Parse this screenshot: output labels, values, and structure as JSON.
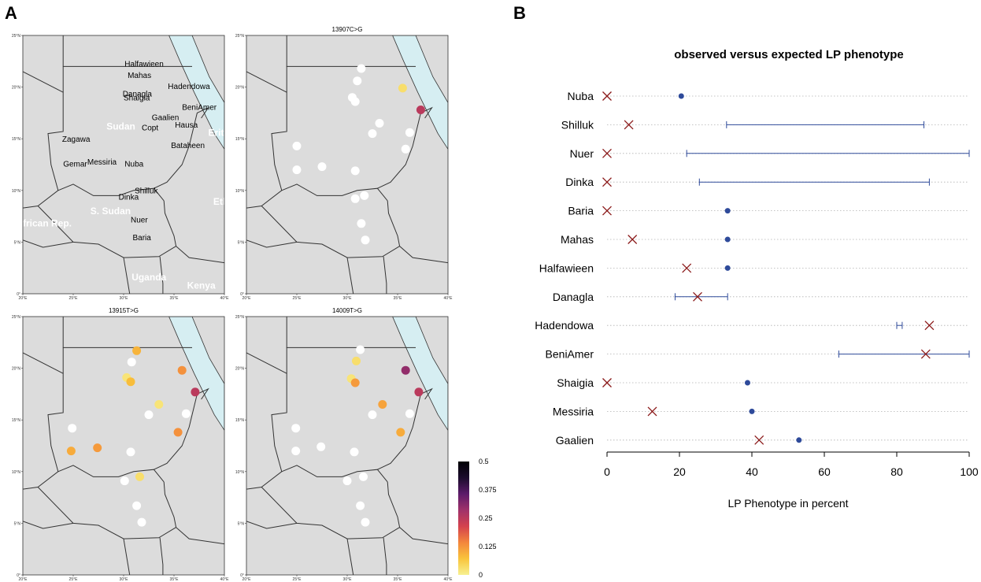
{
  "figure": {
    "panel_a_letter": "A",
    "panel_b_letter": "B"
  },
  "maps": {
    "lat_ticks": [
      "0°",
      "5°N",
      "10°N",
      "15°N",
      "20°N",
      "25°N"
    ],
    "lon_ticks": [
      "20°E",
      "25°E",
      "30°E",
      "35°E",
      "40°E"
    ],
    "panels": [
      {
        "title": ""
      },
      {
        "title": "13907C>G"
      },
      {
        "title": "13915T>G"
      },
      {
        "title": "14009T>G"
      }
    ],
    "country_labels": [
      "Sudan",
      "S. Sudan",
      "frican Rep.",
      "Uganda",
      "Kenya",
      "Ethic",
      "Eritre"
    ],
    "population_labels": [
      "Halfawieen",
      "Mahas",
      "Hadendowa",
      "Danagla",
      "Shaigia",
      "BeniAmer",
      "Gaalien",
      "Copt",
      "Hausa",
      "Zagawa",
      "Bataheen",
      "Gemar",
      "Messiria",
      "Nuba",
      "Shilluk",
      "Dinka",
      "Nuer",
      "Baria"
    ],
    "colorbar": {
      "ticks": [
        "0.5",
        "0.375",
        "0.25",
        "0.125",
        "0"
      ],
      "min": 0,
      "max": 0.5,
      "colors": [
        "#f7f190",
        "#f9c43b",
        "#f3863c",
        "#d4424e",
        "#a0326a",
        "#5c1b6a",
        "#1b0c2c",
        "#000004"
      ]
    }
  },
  "chart_data": {
    "type": "scatter",
    "title": "observed versus expected LP phenotype",
    "xlabel": "LP Phenotype in percent",
    "xlim": [
      0,
      100
    ],
    "x_ticks": [
      "0",
      "20",
      "40",
      "60",
      "80",
      "100"
    ],
    "categories": [
      "Nuba",
      "Shilluk",
      "Nuer",
      "Dinka",
      "Baria",
      "Mahas",
      "Halfawieen",
      "Danagla",
      "Hadendowa",
      "BeniAmer",
      "Shaigia",
      "Messiria",
      "Gaalien"
    ],
    "series": [
      {
        "marker": "x",
        "color": "#8b1a1a",
        "values": [
          0,
          6,
          0,
          0,
          0,
          7,
          22,
          25,
          89,
          88,
          0,
          12.5,
          42
        ]
      },
      {
        "marker": "dot",
        "color": "#2e4a9a",
        "values": [
          20.5,
          null,
          null,
          null,
          33.3,
          33.3,
          33.3,
          null,
          null,
          null,
          38.8,
          40,
          53
        ]
      },
      {
        "marker": "range",
        "color": "#2e4a9a",
        "ranges": [
          null,
          [
            33,
            87.5
          ],
          [
            22,
            100
          ],
          [
            25.5,
            89
          ],
          null,
          null,
          null,
          [
            18.8,
            33.3
          ],
          [
            80,
            81.5
          ],
          [
            64,
            100
          ],
          null,
          null,
          null
        ]
      }
    ],
    "grid": "dotted-horizontal"
  }
}
